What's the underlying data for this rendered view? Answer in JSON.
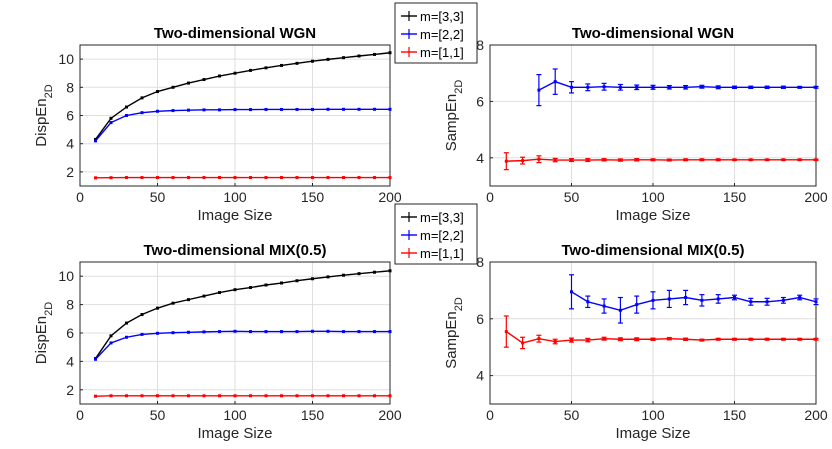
{
  "chart_data": [
    {
      "type": "line",
      "title": "Two-dimensional WGN",
      "xlabel": "Image Size",
      "ylabel": "DispEn",
      "ylabel_sub": "2D",
      "xlim": [
        0,
        200
      ],
      "ylim": [
        1,
        11
      ],
      "xticks": [
        0,
        50,
        100,
        150,
        200
      ],
      "yticks": [
        2,
        4,
        6,
        8,
        10
      ],
      "grid": true,
      "legend": "top-right, outside",
      "series": [
        {
          "name": "m=[3,3]",
          "color": "#000000",
          "x": [
            10,
            20,
            30,
            40,
            50,
            60,
            70,
            80,
            90,
            100,
            110,
            120,
            130,
            140,
            150,
            160,
            170,
            180,
            190,
            200
          ],
          "y": [
            4.3,
            5.8,
            6.6,
            7.25,
            7.7,
            8.0,
            8.3,
            8.55,
            8.8,
            9.0,
            9.2,
            9.38,
            9.55,
            9.7,
            9.85,
            9.98,
            10.1,
            10.22,
            10.33,
            10.45
          ]
        },
        {
          "name": "m=[2,2]",
          "color": "#0000ff",
          "x": [
            10,
            20,
            30,
            40,
            50,
            60,
            70,
            80,
            90,
            100,
            110,
            120,
            130,
            140,
            150,
            160,
            170,
            180,
            190,
            200
          ],
          "y": [
            4.2,
            5.5,
            6.0,
            6.2,
            6.3,
            6.35,
            6.38,
            6.4,
            6.4,
            6.42,
            6.42,
            6.43,
            6.43,
            6.43,
            6.43,
            6.44,
            6.44,
            6.44,
            6.44,
            6.44
          ]
        },
        {
          "name": "m=[1,1]",
          "color": "#ff0000",
          "x": [
            10,
            20,
            30,
            40,
            50,
            60,
            70,
            80,
            90,
            100,
            110,
            120,
            130,
            140,
            150,
            160,
            170,
            180,
            190,
            200
          ],
          "y": [
            1.58,
            1.59,
            1.6,
            1.6,
            1.6,
            1.6,
            1.6,
            1.6,
            1.6,
            1.6,
            1.6,
            1.6,
            1.6,
            1.6,
            1.6,
            1.6,
            1.6,
            1.6,
            1.6,
            1.6
          ]
        }
      ]
    },
    {
      "type": "line",
      "title": "Two-dimensional WGN",
      "xlabel": "Image Size",
      "ylabel": "SampEn",
      "ylabel_sub": "2D",
      "xlim": [
        0,
        200
      ],
      "ylim": [
        3,
        8
      ],
      "xticks": [
        0,
        50,
        100,
        150,
        200
      ],
      "yticks": [
        4,
        6,
        8
      ],
      "grid": true,
      "error_bars": true,
      "series": [
        {
          "name": "m=[2,2]",
          "color": "#0000ff",
          "x": [
            30,
            40,
            50,
            60,
            70,
            80,
            90,
            100,
            110,
            120,
            130,
            140,
            150,
            160,
            170,
            180,
            190,
            200
          ],
          "y": [
            6.4,
            6.7,
            6.5,
            6.5,
            6.52,
            6.5,
            6.5,
            6.5,
            6.5,
            6.5,
            6.52,
            6.5,
            6.5,
            6.5,
            6.5,
            6.5,
            6.5,
            6.5
          ],
          "err": [
            0.55,
            0.45,
            0.2,
            0.12,
            0.12,
            0.1,
            0.08,
            0.07,
            0.06,
            0.06,
            0.05,
            0.05,
            0.04,
            0.04,
            0.04,
            0.04,
            0.03,
            0.03
          ]
        },
        {
          "name": "m=[1,1]",
          "color": "#ff0000",
          "x": [
            10,
            20,
            30,
            40,
            50,
            60,
            70,
            80,
            90,
            100,
            110,
            120,
            130,
            140,
            150,
            160,
            170,
            180,
            190,
            200
          ],
          "y": [
            3.88,
            3.9,
            3.95,
            3.92,
            3.92,
            3.92,
            3.93,
            3.92,
            3.93,
            3.93,
            3.92,
            3.93,
            3.93,
            3.93,
            3.93,
            3.93,
            3.93,
            3.93,
            3.93,
            3.93
          ],
          "err": [
            0.3,
            0.12,
            0.12,
            0.06,
            0.05,
            0.05,
            0.04,
            0.04,
            0.04,
            0.03,
            0.03,
            0.03,
            0.03,
            0.03,
            0.02,
            0.02,
            0.02,
            0.02,
            0.02,
            0.02
          ]
        }
      ]
    },
    {
      "type": "line",
      "title": "Two-dimensional MIX(0.5)",
      "xlabel": "Image Size",
      "ylabel": "DispEn",
      "ylabel_sub": "2D",
      "xlim": [
        0,
        200
      ],
      "ylim": [
        1,
        11
      ],
      "xticks": [
        0,
        50,
        100,
        150,
        200
      ],
      "yticks": [
        2,
        4,
        6,
        8,
        10
      ],
      "grid": true,
      "legend": "top-right, outside",
      "series": [
        {
          "name": "m=[3,3]",
          "color": "#000000",
          "x": [
            10,
            20,
            30,
            40,
            50,
            60,
            70,
            80,
            90,
            100,
            110,
            120,
            130,
            140,
            150,
            160,
            170,
            180,
            190,
            200
          ],
          "y": [
            4.2,
            5.8,
            6.7,
            7.3,
            7.75,
            8.1,
            8.35,
            8.6,
            8.85,
            9.05,
            9.2,
            9.38,
            9.52,
            9.68,
            9.82,
            9.95,
            10.07,
            10.18,
            10.28,
            10.38
          ]
        },
        {
          "name": "m=[2,2]",
          "color": "#0000ff",
          "x": [
            10,
            20,
            30,
            40,
            50,
            60,
            70,
            80,
            90,
            100,
            110,
            120,
            130,
            140,
            150,
            160,
            170,
            180,
            190,
            200
          ],
          "y": [
            4.15,
            5.3,
            5.7,
            5.9,
            5.98,
            6.02,
            6.05,
            6.08,
            6.1,
            6.12,
            6.1,
            6.1,
            6.1,
            6.1,
            6.12,
            6.12,
            6.1,
            6.1,
            6.1,
            6.1
          ]
        },
        {
          "name": "m=[1,1]",
          "color": "#ff0000",
          "x": [
            10,
            20,
            30,
            40,
            50,
            60,
            70,
            80,
            90,
            100,
            110,
            120,
            130,
            140,
            150,
            160,
            170,
            180,
            190,
            200
          ],
          "y": [
            1.55,
            1.58,
            1.58,
            1.58,
            1.58,
            1.58,
            1.58,
            1.58,
            1.58,
            1.58,
            1.58,
            1.58,
            1.58,
            1.58,
            1.58,
            1.58,
            1.58,
            1.58,
            1.58,
            1.58
          ]
        }
      ]
    },
    {
      "type": "line",
      "title": "Two-dimensional MIX(0.5)",
      "xlabel": "Image Size",
      "ylabel": "SampEn",
      "ylabel_sub": "2D",
      "xlim": [
        0,
        200
      ],
      "ylim": [
        3,
        8
      ],
      "xticks": [
        0,
        50,
        100,
        150,
        200
      ],
      "yticks": [
        4,
        6,
        8
      ],
      "grid": true,
      "error_bars": true,
      "series": [
        {
          "name": "m=[2,2]",
          "color": "#0000ff",
          "x": [
            50,
            60,
            70,
            80,
            90,
            100,
            110,
            120,
            130,
            140,
            150,
            160,
            170,
            180,
            190,
            200
          ],
          "y": [
            6.95,
            6.6,
            6.45,
            6.3,
            6.5,
            6.65,
            6.7,
            6.75,
            6.65,
            6.7,
            6.75,
            6.6,
            6.6,
            6.65,
            6.75,
            6.6
          ],
          "err": [
            0.6,
            0.2,
            0.25,
            0.45,
            0.3,
            0.3,
            0.3,
            0.25,
            0.2,
            0.15,
            0.08,
            0.12,
            0.12,
            0.1,
            0.08,
            0.1
          ]
        },
        {
          "name": "m=[1,1]",
          "color": "#ff0000",
          "x": [
            10,
            20,
            30,
            40,
            50,
            60,
            70,
            80,
            90,
            100,
            110,
            120,
            130,
            140,
            150,
            160,
            170,
            180,
            190,
            200
          ],
          "y": [
            5.55,
            5.15,
            5.3,
            5.2,
            5.25,
            5.25,
            5.3,
            5.28,
            5.28,
            5.28,
            5.3,
            5.28,
            5.25,
            5.28,
            5.28,
            5.28,
            5.28,
            5.28,
            5.28,
            5.28
          ],
          "err": [
            0.55,
            0.2,
            0.12,
            0.08,
            0.07,
            0.06,
            0.05,
            0.05,
            0.05,
            0.04,
            0.04,
            0.04,
            0.03,
            0.03,
            0.03,
            0.03,
            0.03,
            0.03,
            0.03,
            0.03
          ]
        }
      ]
    }
  ]
}
